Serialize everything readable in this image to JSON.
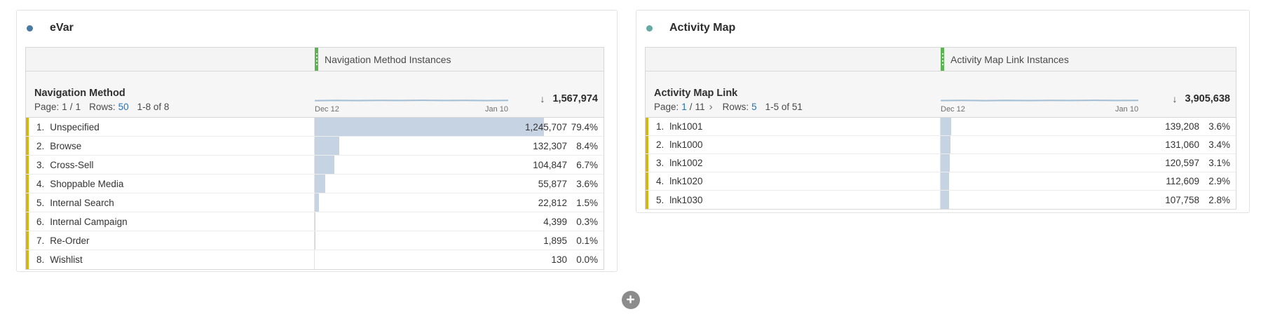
{
  "colors": {
    "evar_dot": "#4a7aa1",
    "activity_map_dot": "#66aaa4",
    "bar_fill": "#c6d3e2",
    "row_accent": "#d8b512",
    "link_blue": "#2572b4",
    "drag_handle_green": "#5eb354"
  },
  "icons": {
    "sort_descending": "↓",
    "next_page": "›",
    "add": "+"
  },
  "panels": [
    {
      "title": "eVar",
      "dot_color": "#4a7aa1",
      "table": {
        "column_header": "Navigation Method Instances",
        "dimension_header": "Navigation Method",
        "pagination": {
          "page_label": "Page:",
          "current_page": "1",
          "separator": "/",
          "total_pages": "1",
          "rows_label": "Rows:",
          "rows_per_page": "50",
          "range": "1-8 of 8"
        },
        "sparkline": {
          "start_label": "Dec 12",
          "end_label": "Jan 10"
        },
        "total": "1,567,974",
        "rows": [
          {
            "rank": "1.",
            "name": "Unspecified",
            "value": "1,245,707",
            "percent": "79.4%",
            "bar_pct": 79.4
          },
          {
            "rank": "2.",
            "name": "Browse",
            "value": "132,307",
            "percent": "8.4%",
            "bar_pct": 8.4
          },
          {
            "rank": "3.",
            "name": "Cross-Sell",
            "value": "104,847",
            "percent": "6.7%",
            "bar_pct": 6.7
          },
          {
            "rank": "4.",
            "name": "Shoppable Media",
            "value": "55,877",
            "percent": "3.6%",
            "bar_pct": 3.6
          },
          {
            "rank": "5.",
            "name": "Internal Search",
            "value": "22,812",
            "percent": "1.5%",
            "bar_pct": 1.5
          },
          {
            "rank": "6.",
            "name": "Internal Campaign",
            "value": "4,399",
            "percent": "0.3%",
            "bar_pct": 0.3
          },
          {
            "rank": "7.",
            "name": "Re-Order",
            "value": "1,895",
            "percent": "0.1%",
            "bar_pct": 0.1
          },
          {
            "rank": "8.",
            "name": "Wishlist",
            "value": "130",
            "percent": "0.0%",
            "bar_pct": 0.0
          }
        ]
      }
    },
    {
      "title": "Activity Map",
      "dot_color": "#66aaa4",
      "table": {
        "column_header": "Activity Map Link Instances",
        "dimension_header": "Activity Map Link",
        "pagination": {
          "page_label": "Page:",
          "current_page": "1",
          "separator": "/",
          "total_pages": "11",
          "next_icon": "›",
          "rows_label": "Rows:",
          "rows_per_page": "5",
          "range": "1-5 of 51"
        },
        "sparkline": {
          "start_label": "Dec 12",
          "end_label": "Jan 10"
        },
        "total": "3,905,638",
        "rows": [
          {
            "rank": "1.",
            "name": "lnk1001",
            "value": "139,208",
            "percent": "3.6%",
            "bar_pct": 3.6
          },
          {
            "rank": "2.",
            "name": "lnk1000",
            "value": "131,060",
            "percent": "3.4%",
            "bar_pct": 3.4
          },
          {
            "rank": "3.",
            "name": "lnk1002",
            "value": "120,597",
            "percent": "3.1%",
            "bar_pct": 3.1
          },
          {
            "rank": "4.",
            "name": "lnk1020",
            "value": "112,609",
            "percent": "2.9%",
            "bar_pct": 2.9
          },
          {
            "rank": "5.",
            "name": "lnk1030",
            "value": "107,758",
            "percent": "2.8%",
            "bar_pct": 2.8
          }
        ]
      }
    }
  ]
}
